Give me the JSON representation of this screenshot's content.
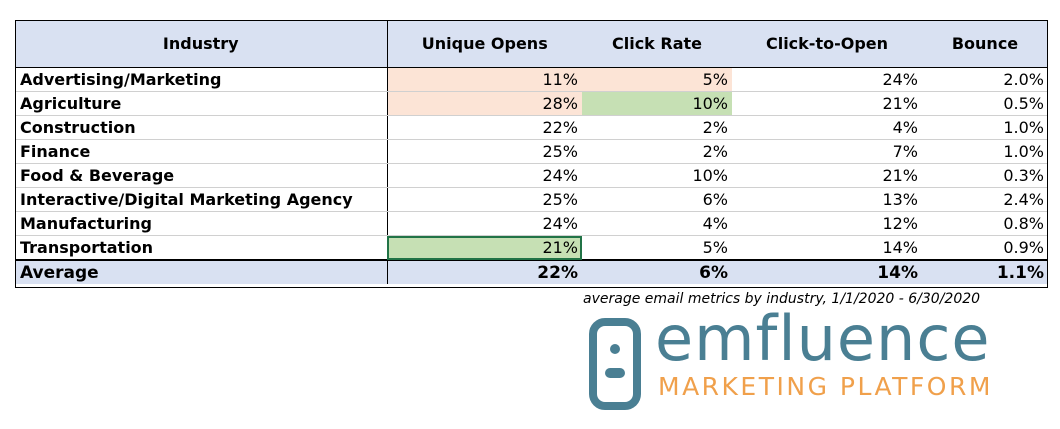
{
  "table": {
    "headers": [
      "Industry",
      "Unique Opens",
      "Click Rate",
      "Click-to-Open",
      "Bounce"
    ],
    "rows": [
      [
        "Advertising/Marketing",
        "11%",
        "5%",
        "24%",
        "2.0%"
      ],
      [
        "Agriculture",
        "28%",
        "10%",
        "21%",
        "0.5%"
      ],
      [
        "Construction",
        "22%",
        "2%",
        "4%",
        "1.0%"
      ],
      [
        "Finance",
        "25%",
        "2%",
        "7%",
        "1.0%"
      ],
      [
        "Food & Beverage",
        "24%",
        "10%",
        "21%",
        "0.3%"
      ],
      [
        "Interactive/Digital Marketing Agency",
        "25%",
        "6%",
        "13%",
        "2.4%"
      ],
      [
        "Manufacturing",
        "24%",
        "4%",
        "12%",
        "0.8%"
      ],
      [
        "Transportation",
        "21%",
        "5%",
        "14%",
        "0.9%"
      ]
    ],
    "average": [
      "Average",
      "22%",
      "6%",
      "14%",
      "1.1%"
    ]
  },
  "caption": "average email metrics by industry, 1/1/2020 - 6/30/2020",
  "logo": {
    "name": "emfluence",
    "tagline": "MARKETING PLATFORM"
  }
}
